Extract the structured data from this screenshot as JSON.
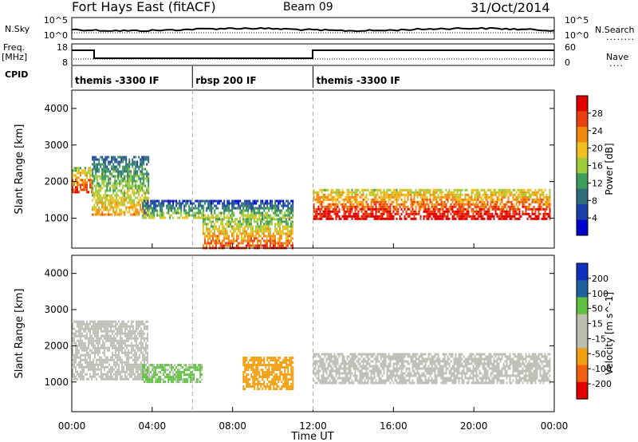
{
  "header": {
    "station": "Fort Hays East (fitACF)",
    "beam": "Beam 09",
    "date": "31/Oct/2014"
  },
  "top_panels": {
    "nsky_label": "N.Sky",
    "nsky_ticks": [
      "10^5",
      "10^0"
    ],
    "nsearch_label": "N.Search",
    "nsearch_ticks": [
      "10^5",
      "10^0"
    ],
    "freq_label": "Freq.",
    "freq_unit": "[MHz]",
    "freq_ticks": [
      "18",
      "8"
    ],
    "nave_label": "Nave",
    "nave_ticks": [
      "60",
      "0"
    ],
    "cpid_label": "CPID",
    "cpid_segments": [
      {
        "label": "themis -3300 IF",
        "start_hour": 0,
        "end_hour": 6
      },
      {
        "label": "rbsp 200 IF",
        "start_hour": 6,
        "end_hour": 12
      },
      {
        "label": "themis -3300 IF",
        "start_hour": 12,
        "end_hour": 24
      }
    ]
  },
  "chart_data": [
    {
      "type": "heatmap",
      "title": "",
      "xlabel": "Time UT",
      "ylabel": "Slant Range [km]",
      "xlim": [
        0,
        24
      ],
      "ylim": [
        180,
        4500
      ],
      "x_ticks": [
        "00:00",
        "04:00",
        "08:00",
        "12:00",
        "16:00",
        "20:00",
        "00:00"
      ],
      "y_ticks": [
        "1000",
        "2000",
        "3000",
        "4000"
      ],
      "colorbar": {
        "label": "Power [dB]",
        "ticks": [
          "28",
          "24",
          "20",
          "16",
          "12",
          "8",
          "4"
        ],
        "range": [
          0,
          30
        ]
      },
      "echo_regions": [
        {
          "start_hour": 0.0,
          "end_hour": 1.0,
          "range_min": 1700,
          "range_max": 2400,
          "power_db": 22
        },
        {
          "start_hour": 1.0,
          "end_hour": 3.8,
          "range_min": 1100,
          "range_max": 2700,
          "power_db": 14
        },
        {
          "start_hour": 3.5,
          "end_hour": 11.0,
          "range_min": 1000,
          "range_max": 1500,
          "power_db": 10
        },
        {
          "start_hour": 6.5,
          "end_hour": 11.0,
          "range_min": 200,
          "range_max": 1000,
          "power_db": 20
        },
        {
          "start_hour": 12.0,
          "end_hour": 23.8,
          "range_min": 1000,
          "range_max": 1800,
          "power_db": 24
        }
      ]
    },
    {
      "type": "heatmap",
      "title": "",
      "xlabel": "Time UT",
      "ylabel": "Slant Range [km]",
      "xlim": [
        0,
        24
      ],
      "ylim": [
        180,
        4500
      ],
      "x_ticks": [
        "00:00",
        "04:00",
        "08:00",
        "12:00",
        "16:00",
        "20:00",
        "00:00"
      ],
      "y_ticks": [
        "1000",
        "2000",
        "3000",
        "4000"
      ],
      "colorbar": {
        "label": "Velocity [m s^-1]",
        "ticks": [
          "200",
          "100",
          "50",
          "15",
          "-15",
          "-50",
          "-100",
          "-200"
        ],
        "range": [
          -200,
          200
        ]
      },
      "echo_regions": [
        {
          "start_hour": 0.0,
          "end_hour": 3.8,
          "range_min": 1100,
          "range_max": 2700,
          "velocity": 0
        },
        {
          "start_hour": 3.5,
          "end_hour": 6.5,
          "range_min": 1000,
          "range_max": 1500,
          "velocity": 30
        },
        {
          "start_hour": 8.5,
          "end_hour": 11.0,
          "range_min": 800,
          "range_max": 1700,
          "velocity": -40
        },
        {
          "start_hour": 12.0,
          "end_hour": 23.8,
          "range_min": 1000,
          "range_max": 1800,
          "velocity": 0
        }
      ]
    }
  ],
  "colors": {
    "power_scale": [
      "#0000cc",
      "#1a3fa8",
      "#2e6e7a",
      "#3f9c5a",
      "#9fcc3a",
      "#f0c020",
      "#f08a10",
      "#e84010",
      "#e00000"
    ],
    "velocity_scale": [
      "#e00000",
      "#f06010",
      "#f0a010",
      "#bdbdb0",
      "#bdbdb0",
      "#60c040",
      "#2060a0",
      "#1030c0"
    ],
    "ground_scatter": "#c0c0b8"
  }
}
